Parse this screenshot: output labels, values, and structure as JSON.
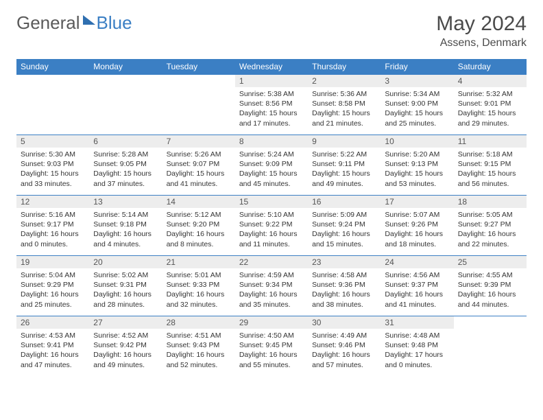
{
  "brand": {
    "text1": "General",
    "text2": "Blue"
  },
  "title": {
    "month": "May 2024",
    "location": "Assens, Denmark"
  },
  "colors": {
    "header_bg": "#3b7fc4",
    "header_text": "#ffffff",
    "daynum_bg": "#ededed",
    "cell_border": "#3b7fc4",
    "body_text": "#333333"
  },
  "weekdays": [
    "Sunday",
    "Monday",
    "Tuesday",
    "Wednesday",
    "Thursday",
    "Friday",
    "Saturday"
  ],
  "weeks": [
    [
      null,
      null,
      null,
      {
        "n": "1",
        "sr": "Sunrise: 5:38 AM",
        "ss": "Sunset: 8:56 PM",
        "dl1": "Daylight: 15 hours",
        "dl2": "and 17 minutes."
      },
      {
        "n": "2",
        "sr": "Sunrise: 5:36 AM",
        "ss": "Sunset: 8:58 PM",
        "dl1": "Daylight: 15 hours",
        "dl2": "and 21 minutes."
      },
      {
        "n": "3",
        "sr": "Sunrise: 5:34 AM",
        "ss": "Sunset: 9:00 PM",
        "dl1": "Daylight: 15 hours",
        "dl2": "and 25 minutes."
      },
      {
        "n": "4",
        "sr": "Sunrise: 5:32 AM",
        "ss": "Sunset: 9:01 PM",
        "dl1": "Daylight: 15 hours",
        "dl2": "and 29 minutes."
      }
    ],
    [
      {
        "n": "5",
        "sr": "Sunrise: 5:30 AM",
        "ss": "Sunset: 9:03 PM",
        "dl1": "Daylight: 15 hours",
        "dl2": "and 33 minutes."
      },
      {
        "n": "6",
        "sr": "Sunrise: 5:28 AM",
        "ss": "Sunset: 9:05 PM",
        "dl1": "Daylight: 15 hours",
        "dl2": "and 37 minutes."
      },
      {
        "n": "7",
        "sr": "Sunrise: 5:26 AM",
        "ss": "Sunset: 9:07 PM",
        "dl1": "Daylight: 15 hours",
        "dl2": "and 41 minutes."
      },
      {
        "n": "8",
        "sr": "Sunrise: 5:24 AM",
        "ss": "Sunset: 9:09 PM",
        "dl1": "Daylight: 15 hours",
        "dl2": "and 45 minutes."
      },
      {
        "n": "9",
        "sr": "Sunrise: 5:22 AM",
        "ss": "Sunset: 9:11 PM",
        "dl1": "Daylight: 15 hours",
        "dl2": "and 49 minutes."
      },
      {
        "n": "10",
        "sr": "Sunrise: 5:20 AM",
        "ss": "Sunset: 9:13 PM",
        "dl1": "Daylight: 15 hours",
        "dl2": "and 53 minutes."
      },
      {
        "n": "11",
        "sr": "Sunrise: 5:18 AM",
        "ss": "Sunset: 9:15 PM",
        "dl1": "Daylight: 15 hours",
        "dl2": "and 56 minutes."
      }
    ],
    [
      {
        "n": "12",
        "sr": "Sunrise: 5:16 AM",
        "ss": "Sunset: 9:17 PM",
        "dl1": "Daylight: 16 hours",
        "dl2": "and 0 minutes."
      },
      {
        "n": "13",
        "sr": "Sunrise: 5:14 AM",
        "ss": "Sunset: 9:18 PM",
        "dl1": "Daylight: 16 hours",
        "dl2": "and 4 minutes."
      },
      {
        "n": "14",
        "sr": "Sunrise: 5:12 AM",
        "ss": "Sunset: 9:20 PM",
        "dl1": "Daylight: 16 hours",
        "dl2": "and 8 minutes."
      },
      {
        "n": "15",
        "sr": "Sunrise: 5:10 AM",
        "ss": "Sunset: 9:22 PM",
        "dl1": "Daylight: 16 hours",
        "dl2": "and 11 minutes."
      },
      {
        "n": "16",
        "sr": "Sunrise: 5:09 AM",
        "ss": "Sunset: 9:24 PM",
        "dl1": "Daylight: 16 hours",
        "dl2": "and 15 minutes."
      },
      {
        "n": "17",
        "sr": "Sunrise: 5:07 AM",
        "ss": "Sunset: 9:26 PM",
        "dl1": "Daylight: 16 hours",
        "dl2": "and 18 minutes."
      },
      {
        "n": "18",
        "sr": "Sunrise: 5:05 AM",
        "ss": "Sunset: 9:27 PM",
        "dl1": "Daylight: 16 hours",
        "dl2": "and 22 minutes."
      }
    ],
    [
      {
        "n": "19",
        "sr": "Sunrise: 5:04 AM",
        "ss": "Sunset: 9:29 PM",
        "dl1": "Daylight: 16 hours",
        "dl2": "and 25 minutes."
      },
      {
        "n": "20",
        "sr": "Sunrise: 5:02 AM",
        "ss": "Sunset: 9:31 PM",
        "dl1": "Daylight: 16 hours",
        "dl2": "and 28 minutes."
      },
      {
        "n": "21",
        "sr": "Sunrise: 5:01 AM",
        "ss": "Sunset: 9:33 PM",
        "dl1": "Daylight: 16 hours",
        "dl2": "and 32 minutes."
      },
      {
        "n": "22",
        "sr": "Sunrise: 4:59 AM",
        "ss": "Sunset: 9:34 PM",
        "dl1": "Daylight: 16 hours",
        "dl2": "and 35 minutes."
      },
      {
        "n": "23",
        "sr": "Sunrise: 4:58 AM",
        "ss": "Sunset: 9:36 PM",
        "dl1": "Daylight: 16 hours",
        "dl2": "and 38 minutes."
      },
      {
        "n": "24",
        "sr": "Sunrise: 4:56 AM",
        "ss": "Sunset: 9:37 PM",
        "dl1": "Daylight: 16 hours",
        "dl2": "and 41 minutes."
      },
      {
        "n": "25",
        "sr": "Sunrise: 4:55 AM",
        "ss": "Sunset: 9:39 PM",
        "dl1": "Daylight: 16 hours",
        "dl2": "and 44 minutes."
      }
    ],
    [
      {
        "n": "26",
        "sr": "Sunrise: 4:53 AM",
        "ss": "Sunset: 9:41 PM",
        "dl1": "Daylight: 16 hours",
        "dl2": "and 47 minutes."
      },
      {
        "n": "27",
        "sr": "Sunrise: 4:52 AM",
        "ss": "Sunset: 9:42 PM",
        "dl1": "Daylight: 16 hours",
        "dl2": "and 49 minutes."
      },
      {
        "n": "28",
        "sr": "Sunrise: 4:51 AM",
        "ss": "Sunset: 9:43 PM",
        "dl1": "Daylight: 16 hours",
        "dl2": "and 52 minutes."
      },
      {
        "n": "29",
        "sr": "Sunrise: 4:50 AM",
        "ss": "Sunset: 9:45 PM",
        "dl1": "Daylight: 16 hours",
        "dl2": "and 55 minutes."
      },
      {
        "n": "30",
        "sr": "Sunrise: 4:49 AM",
        "ss": "Sunset: 9:46 PM",
        "dl1": "Daylight: 16 hours",
        "dl2": "and 57 minutes."
      },
      {
        "n": "31",
        "sr": "Sunrise: 4:48 AM",
        "ss": "Sunset: 9:48 PM",
        "dl1": "Daylight: 17 hours",
        "dl2": "and 0 minutes."
      },
      null
    ]
  ]
}
